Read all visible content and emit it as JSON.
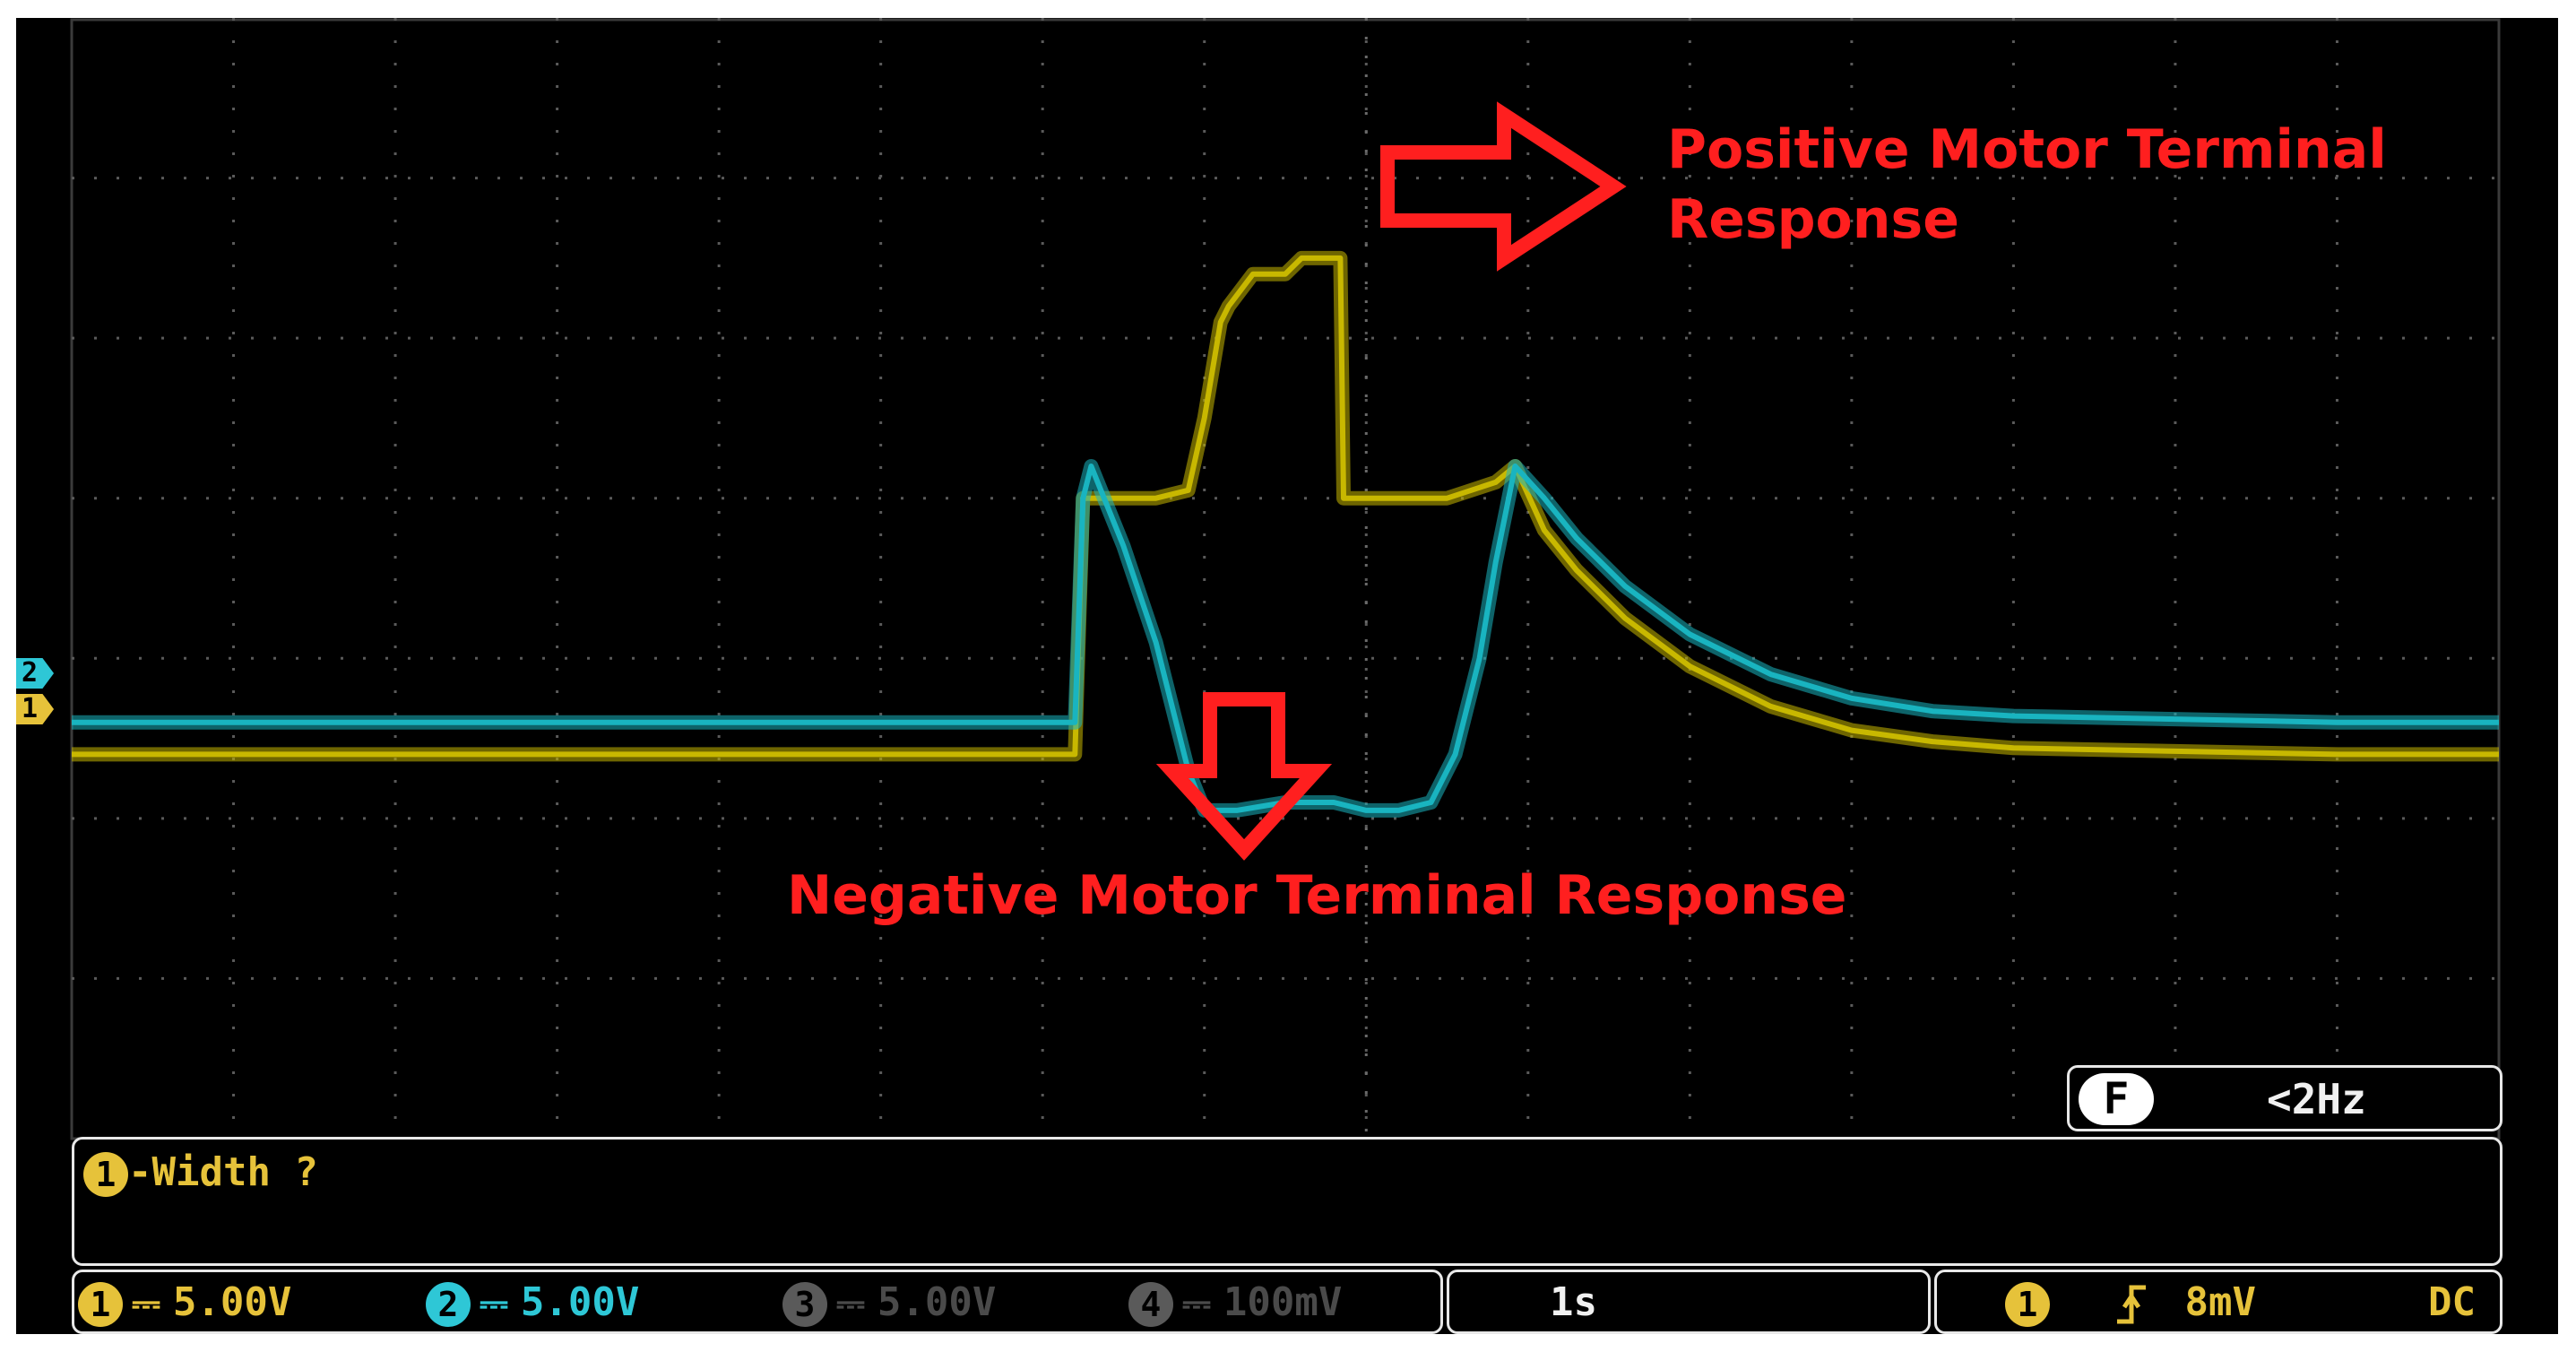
{
  "annotations": {
    "positive_line1": "Positive Motor Terminal",
    "positive_line2": "Response",
    "negative": "Negative Motor Terminal Response"
  },
  "channel_markers": {
    "ch2": "2",
    "ch1": "1"
  },
  "freq_readout": {
    "icon": "F",
    "value": "<2Hz"
  },
  "measurement": {
    "channel": "1",
    "label": "-Width ?"
  },
  "status": {
    "ch1": {
      "num": "1",
      "coupling": "⎓",
      "scale": "5.00V",
      "color": "#e6c23a"
    },
    "ch2": {
      "num": "2",
      "coupling": "⎓",
      "scale": "5.00V",
      "color": "#2ec7d6"
    },
    "ch3": {
      "num": "3",
      "coupling": "⎓",
      "scale": "5.00V"
    },
    "ch4": {
      "num": "4",
      "coupling": "⎓",
      "scale": "100mV"
    },
    "timebase": "1s",
    "trigger": {
      "channel": "1",
      "slope_icon": "rising-edge-icon",
      "level": "8mV",
      "coupling": "DC"
    }
  },
  "chart_data": {
    "type": "line",
    "title": "",
    "xlabel": "",
    "ylabel": "",
    "x_divisions": 15,
    "y_divisions": 7,
    "xlim": [
      0,
      15
    ],
    "ylim": [
      -2.2,
      4.8
    ],
    "grid": true,
    "series": [
      {
        "name": "",
        "channel": 1,
        "color": "#c8b800",
        "x": [
          0,
          6.2,
          6.25,
          6.3,
          6.5,
          6.7,
          6.9,
          7.0,
          7.1,
          7.15,
          7.3,
          7.5,
          7.6,
          7.7,
          7.8,
          7.84,
          7.86,
          8.0,
          8.2,
          8.5,
          8.8,
          8.92,
          9.1,
          9.3,
          9.6,
          10.0,
          10.5,
          11.0,
          11.5,
          12.0,
          13.0,
          14.0,
          15.0
        ],
        "y": [
          0.2,
          0.2,
          1.8,
          1.8,
          1.8,
          1.8,
          1.85,
          2.3,
          2.9,
          3.0,
          3.2,
          3.2,
          3.3,
          3.3,
          3.3,
          3.3,
          1.8,
          1.8,
          1.8,
          1.8,
          1.9,
          2.0,
          1.6,
          1.35,
          1.05,
          0.75,
          0.5,
          0.35,
          0.28,
          0.24,
          0.22,
          0.2,
          0.2
        ]
      },
      {
        "name": "",
        "channel": 2,
        "color": "#19b4c0",
        "x": [
          0,
          6.2,
          6.25,
          6.3,
          6.5,
          6.7,
          6.9,
          7.0,
          7.2,
          7.5,
          7.8,
          8.0,
          8.2,
          8.4,
          8.55,
          8.7,
          8.8,
          8.92,
          9.1,
          9.3,
          9.6,
          10.0,
          10.5,
          11.0,
          11.5,
          12.0,
          13.0,
          14.0,
          15.0
        ],
        "y": [
          0.4,
          0.4,
          1.8,
          2.0,
          1.5,
          0.9,
          0.1,
          -0.15,
          -0.15,
          -0.1,
          -0.1,
          -0.15,
          -0.15,
          -0.1,
          0.2,
          0.8,
          1.4,
          2.0,
          1.8,
          1.55,
          1.25,
          0.95,
          0.7,
          0.55,
          0.47,
          0.44,
          0.42,
          0.4,
          0.4
        ]
      }
    ]
  }
}
